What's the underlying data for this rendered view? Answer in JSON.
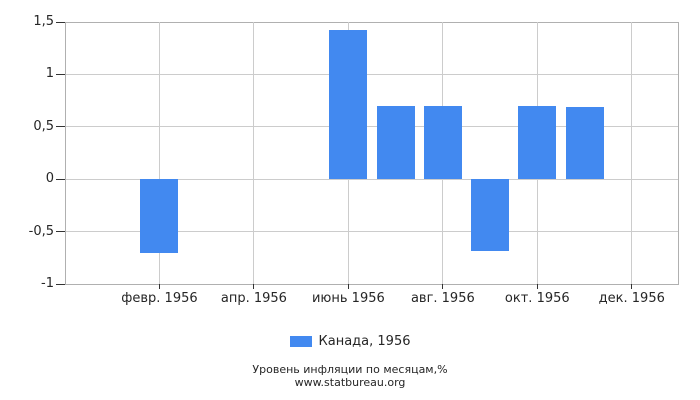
{
  "chart_data": {
    "type": "bar",
    "title": "Уровень инфляции по месяцам,%",
    "source": "www.statbureau.org",
    "xlabel": "",
    "ylabel": "",
    "months_count": 12,
    "series": [
      {
        "name": "Канада, 1956",
        "values": [
          0,
          -0.7,
          0,
          0,
          0,
          1.42,
          0.7,
          0.7,
          -0.69,
          0.7,
          0.69,
          0
        ]
      }
    ],
    "x_tick_labels": [
      "февр. 1956",
      "апр. 1956",
      "июнь 1956",
      "авг. 1956",
      "окт. 1956",
      "дек. 1956"
    ],
    "x_tick_month_indexes": [
      2,
      4,
      6,
      8,
      10,
      12
    ],
    "y_ticks": [
      {
        "label": "1,5",
        "value": 1.5
      },
      {
        "label": "1",
        "value": 1
      },
      {
        "label": "0,5",
        "value": 0.5
      },
      {
        "label": "0",
        "value": 0
      },
      {
        "label": "-0,5",
        "value": -0.5
      },
      {
        "label": "-1",
        "value": -1
      }
    ],
    "ylim": [
      -1,
      1.5
    ],
    "grid": true,
    "legend_position": "bottom"
  },
  "legend": {
    "label": "Канада, 1956"
  },
  "footer": {
    "line1": "Уровень инфляции по месяцам,%",
    "line2": "www.statbureau.org"
  },
  "colors": {
    "bar": "#4289F0",
    "grid": "#cccccc",
    "plot_border": "#b0b0b0",
    "tick": "#333333",
    "text": "#262626"
  }
}
